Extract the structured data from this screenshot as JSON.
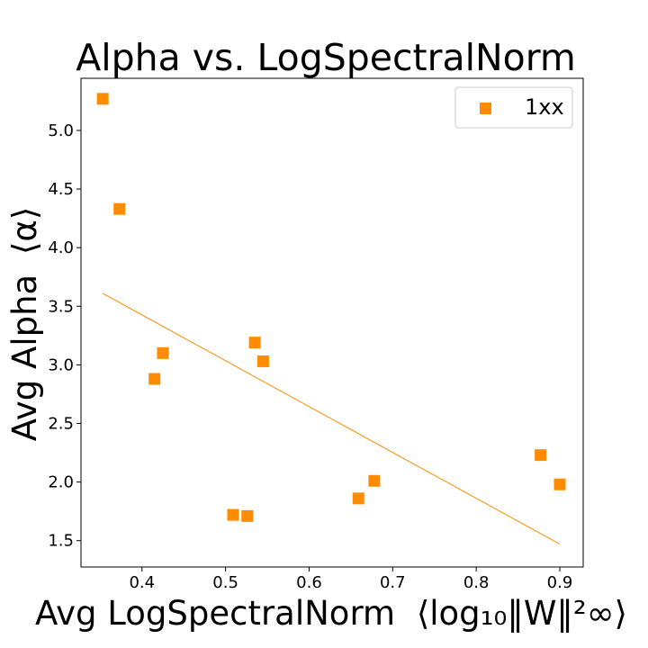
{
  "chart_data": {
    "type": "scatter",
    "title": "Alpha vs. LogSpectralNorm",
    "xlabel": "Avg LogSpectralNorm",
    "xlabel_math": "⟨log₁₀‖W‖²∞⟩",
    "ylabel": "Avg Alpha",
    "ylabel_math": "⟨α⟩",
    "xlim": [
      0.327,
      0.928
    ],
    "ylim": [
      1.275,
      5.445
    ],
    "xticks": [
      0.4,
      0.5,
      0.6,
      0.7,
      0.8,
      0.9
    ],
    "xtick_labels": [
      "0.4",
      "0.5",
      "0.6",
      "0.7",
      "0.8",
      "0.9"
    ],
    "yticks": [
      1.5,
      2.0,
      2.5,
      3.0,
      3.5,
      4.0,
      4.5,
      5.0
    ],
    "ytick_labels": [
      "1.5",
      "2.0",
      "2.5",
      "3.0",
      "3.5",
      "4.0",
      "4.5",
      "5.0"
    ],
    "grid": false,
    "legend_position": "top-right",
    "series": [
      {
        "name": "1xx",
        "color": "#ff8c00",
        "marker": "square",
        "points": [
          {
            "x": 0.353,
            "y": 5.27
          },
          {
            "x": 0.373,
            "y": 4.33
          },
          {
            "x": 0.415,
            "y": 2.88
          },
          {
            "x": 0.425,
            "y": 3.1
          },
          {
            "x": 0.509,
            "y": 1.72
          },
          {
            "x": 0.526,
            "y": 1.71
          },
          {
            "x": 0.535,
            "y": 3.19
          },
          {
            "x": 0.545,
            "y": 3.03
          },
          {
            "x": 0.659,
            "y": 1.86
          },
          {
            "x": 0.678,
            "y": 2.01
          },
          {
            "x": 0.877,
            "y": 2.23
          },
          {
            "x": 0.9,
            "y": 1.98
          }
        ]
      }
    ],
    "fit_line": {
      "color": "#ff8c00",
      "points": [
        {
          "x": 0.353,
          "y": 3.61
        },
        {
          "x": 0.9,
          "y": 1.47
        }
      ]
    }
  }
}
